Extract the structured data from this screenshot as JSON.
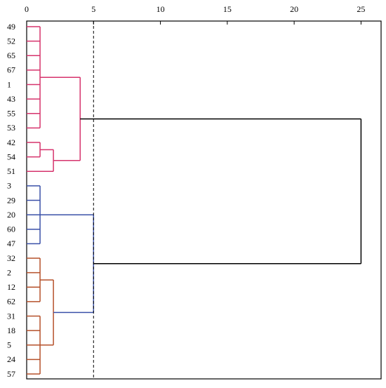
{
  "chart_data": {
    "type": "dendrogram",
    "leaves": [
      "49",
      "52",
      "65",
      "67",
      "1",
      "43",
      "55",
      "53",
      "42",
      "54",
      "51",
      "3",
      "29",
      "20",
      "60",
      "47",
      "32",
      "2",
      "12",
      "62",
      "31",
      "18",
      "5",
      "24",
      "57"
    ],
    "merges": [
      {
        "children": [
          0,
          1,
          2,
          3,
          4,
          5,
          6,
          7
        ],
        "height": 1,
        "color": "#d6336c"
      },
      {
        "children": [
          8,
          9
        ],
        "height": 1,
        "color": "#d6336c"
      },
      {
        "children": [
          26,
          10
        ],
        "height": 2,
        "color": "#d6336c"
      },
      {
        "children": [
          25,
          27
        ],
        "height": 4,
        "color": "#d6336c"
      },
      {
        "children": [
          11,
          12,
          13,
          14,
          15
        ],
        "height": 1,
        "color": "#3a50a8"
      },
      {
        "children": [
          16,
          17,
          18,
          19
        ],
        "height": 1,
        "color": "#b5502a"
      },
      {
        "children": [
          20,
          21,
          22,
          23,
          24
        ],
        "height": 1,
        "color": "#b5502a"
      },
      {
        "children": [
          30,
          31
        ],
        "height": 2,
        "color": "#b5502a"
      },
      {
        "children": [
          29,
          32
        ],
        "height": 5,
        "color": "#3a50a8"
      },
      {
        "children": [
          28,
          33
        ],
        "height": 25,
        "color": "#000000"
      }
    ],
    "cut_line": 5,
    "xlim": [
      0,
      26.5
    ],
    "xticks": [
      0,
      5,
      10,
      15,
      20,
      25
    ]
  }
}
